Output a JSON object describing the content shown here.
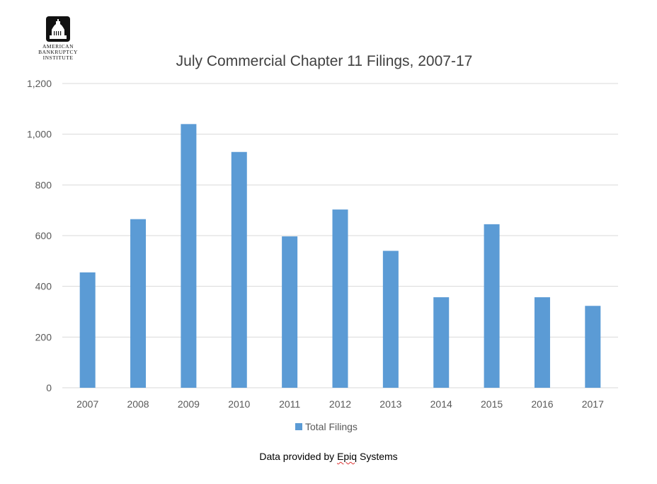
{
  "logo": {
    "lines": [
      "American",
      "Bankruptcy",
      "Institute"
    ]
  },
  "source": {
    "prefix": "Data provided by ",
    "company": "Epiq",
    "suffix": " Systems"
  },
  "colors": {
    "bar": "#5b9bd5",
    "grid": "#d9d9d9",
    "text": "#595959",
    "title": "#404040"
  },
  "chart_data": {
    "type": "bar",
    "title": "July Commercial Chapter 11 Filings, 2007-17",
    "xlabel": "",
    "ylabel": "",
    "categories": [
      "2007",
      "2008",
      "2009",
      "2010",
      "2011",
      "2012",
      "2013",
      "2014",
      "2015",
      "2016",
      "2017"
    ],
    "series": [
      {
        "name": "Total Filings",
        "values": [
          455,
          665,
          1040,
          930,
          597,
          703,
          540,
          357,
          645,
          357,
          323
        ]
      }
    ],
    "ylim": [
      0,
      1200
    ],
    "yticks": [
      "0",
      "200",
      "400",
      "600",
      "800",
      "1,000",
      "1,200"
    ],
    "grid": true,
    "legend": "bottom"
  }
}
